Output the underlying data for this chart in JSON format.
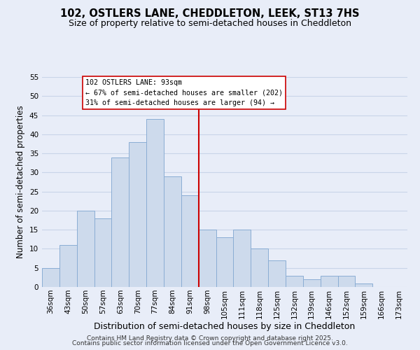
{
  "title": "102, OSTLERS LANE, CHEDDLETON, LEEK, ST13 7HS",
  "subtitle": "Size of property relative to semi-detached houses in Cheddleton",
  "xlabel": "Distribution of semi-detached houses by size in Cheddleton",
  "ylabel": "Number of semi-detached properties",
  "bar_labels": [
    "36sqm",
    "43sqm",
    "50sqm",
    "57sqm",
    "63sqm",
    "70sqm",
    "77sqm",
    "84sqm",
    "91sqm",
    "98sqm",
    "105sqm",
    "111sqm",
    "118sqm",
    "125sqm",
    "132sqm",
    "139sqm",
    "146sqm",
    "152sqm",
    "159sqm",
    "166sqm",
    "173sqm"
  ],
  "bar_values": [
    5,
    11,
    20,
    18,
    34,
    38,
    44,
    29,
    24,
    15,
    13,
    15,
    10,
    7,
    3,
    2,
    3,
    3,
    1,
    0,
    0
  ],
  "bar_color": "#cddaec",
  "bar_edge_color": "#8aadd4",
  "vline_x_index": 8,
  "vline_color": "#cc0000",
  "annotation_title": "102 OSTLERS LANE: 93sqm",
  "annotation_line1": "← 67% of semi-detached houses are smaller (202)",
  "annotation_line2": "31% of semi-detached houses are larger (94) →",
  "annotation_box_color": "#ffffff",
  "annotation_box_edge": "#cc0000",
  "ylim": [
    0,
    55
  ],
  "yticks": [
    0,
    5,
    10,
    15,
    20,
    25,
    30,
    35,
    40,
    45,
    50,
    55
  ],
  "grid_color": "#c8d4e8",
  "bg_color": "#e8edf8",
  "footer1": "Contains HM Land Registry data © Crown copyright and database right 2025.",
  "footer2": "Contains public sector information licensed under the Open Government Licence v3.0.",
  "title_fontsize": 10.5,
  "subtitle_fontsize": 9,
  "xlabel_fontsize": 9,
  "ylabel_fontsize": 8.5,
  "tick_fontsize": 7.5,
  "footer_fontsize": 6.5
}
